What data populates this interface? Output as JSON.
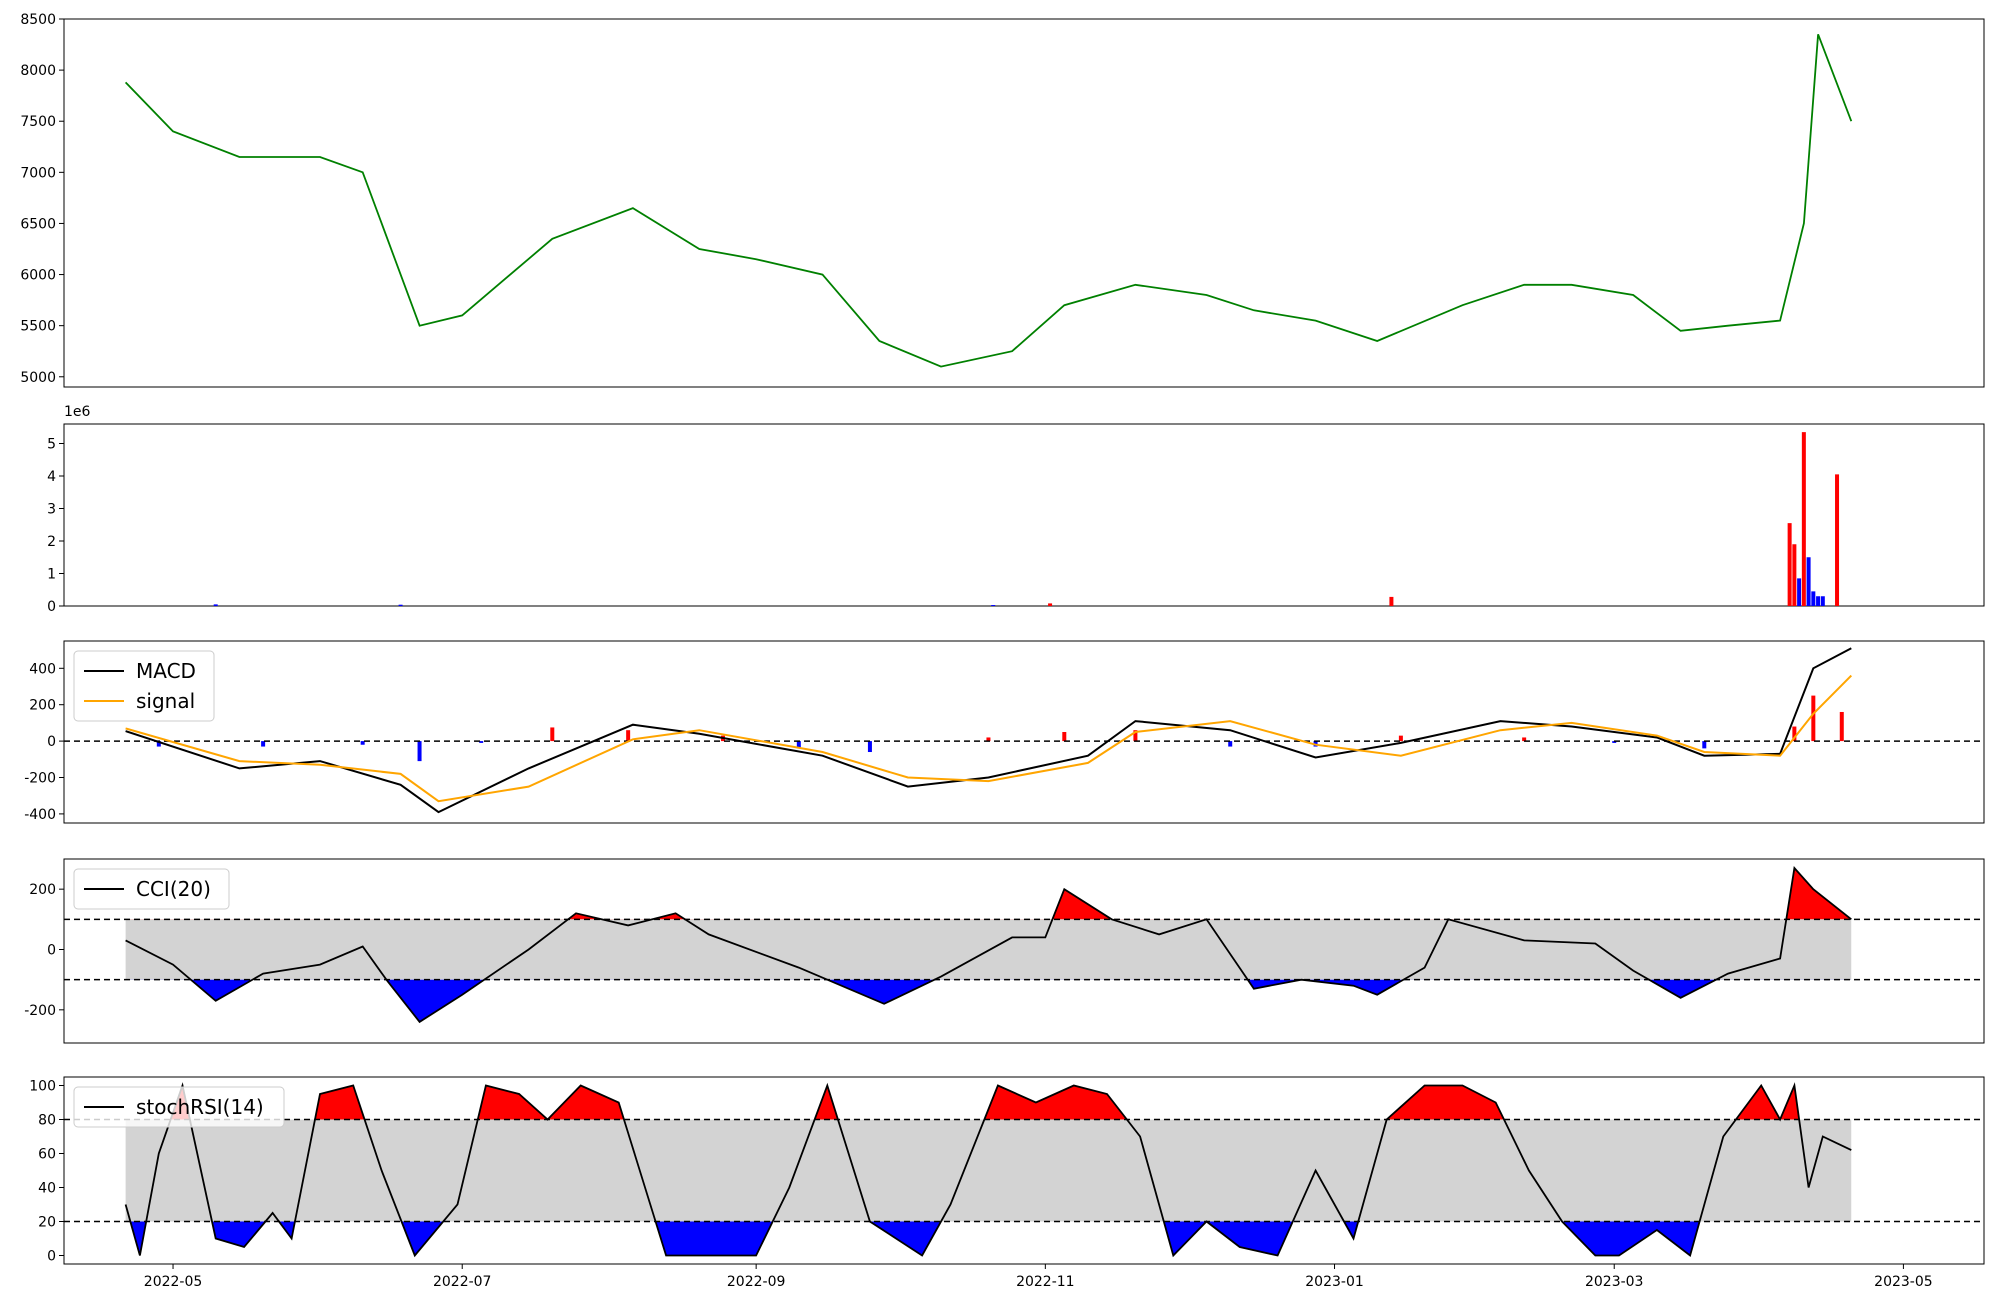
{
  "colors": {
    "price": "#008000",
    "volume_up": "#ff0000",
    "volume_down": "#0000ff",
    "macd": "#000000",
    "signal": "#ffa500",
    "band_fill": "#d3d3d3",
    "high_fill": "#ff0000",
    "low_fill": "#0000ff"
  },
  "x_axis": {
    "ticks": [
      "2022-05",
      "2022-07",
      "2022-09",
      "2022-11",
      "2023-01",
      "2023-03",
      "2023-05"
    ]
  },
  "chart_data": [
    {
      "type": "line",
      "name": "price",
      "ylim": [
        4900,
        8500
      ],
      "yticks": [
        "5000",
        "5500",
        "6000",
        "6500",
        "7000",
        "7500",
        "8000",
        "8500"
      ],
      "x": [
        "2022-04-21",
        "2022-05-01",
        "2022-05-15",
        "2022-06-01",
        "2022-06-10",
        "2022-06-22",
        "2022-07-01",
        "2022-07-20",
        "2022-08-06",
        "2022-08-20",
        "2022-09-01",
        "2022-09-15",
        "2022-09-27",
        "2022-10-10",
        "2022-10-25",
        "2022-11-05",
        "2022-11-20",
        "2022-12-05",
        "2022-12-15",
        "2022-12-28",
        "2023-01-10",
        "2023-01-28",
        "2023-02-10",
        "2023-02-20",
        "2023-03-05",
        "2023-03-15",
        "2023-03-25",
        "2023-04-05",
        "2023-04-10",
        "2023-04-13",
        "2023-04-20"
      ],
      "y": [
        7880,
        7400,
        7150,
        7150,
        7000,
        5500,
        5600,
        6350,
        6650,
        6250,
        6150,
        6000,
        5350,
        5100,
        5250,
        5700,
        5900,
        5800,
        5650,
        5550,
        5350,
        5700,
        5900,
        5900,
        5800,
        5450,
        5500,
        5550,
        6500,
        8350,
        7500
      ]
    },
    {
      "type": "bar",
      "name": "volume",
      "multiplier_label": "1e6",
      "ylim": [
        0,
        5.6
      ],
      "yticks": [
        "0",
        "1",
        "2",
        "3",
        "4",
        "5"
      ],
      "points": [
        {
          "x": "2022-05-10",
          "v": 0.05,
          "dir": "down"
        },
        {
          "x": "2022-06-18",
          "v": 0.04,
          "dir": "down"
        },
        {
          "x": "2022-10-21",
          "v": 0.03,
          "dir": "down"
        },
        {
          "x": "2022-11-02",
          "v": 0.08,
          "dir": "up"
        },
        {
          "x": "2023-01-13",
          "v": 0.28,
          "dir": "up"
        },
        {
          "x": "2023-04-07",
          "v": 2.55,
          "dir": "up"
        },
        {
          "x": "2023-04-08",
          "v": 1.9,
          "dir": "up"
        },
        {
          "x": "2023-04-09",
          "v": 0.85,
          "dir": "down"
        },
        {
          "x": "2023-04-10",
          "v": 5.35,
          "dir": "up"
        },
        {
          "x": "2023-04-11",
          "v": 1.5,
          "dir": "down"
        },
        {
          "x": "2023-04-12",
          "v": 0.45,
          "dir": "down"
        },
        {
          "x": "2023-04-13",
          "v": 0.3,
          "dir": "down"
        },
        {
          "x": "2023-04-14",
          "v": 0.3,
          "dir": "down"
        },
        {
          "x": "2023-04-17",
          "v": 4.05,
          "dir": "up"
        }
      ]
    },
    {
      "type": "line",
      "name": "macd",
      "ylim": [
        -450,
        550
      ],
      "yticks": [
        "-400",
        "-200",
        "0",
        "200",
        "400"
      ],
      "legend": [
        "MACD",
        "signal"
      ],
      "series": [
        {
          "name": "MACD",
          "x": [
            "2022-04-21",
            "2022-05-15",
            "2022-06-01",
            "2022-06-18",
            "2022-06-26",
            "2022-07-15",
            "2022-08-06",
            "2022-08-20",
            "2022-09-15",
            "2022-10-03",
            "2022-10-20",
            "2022-11-10",
            "2022-11-20",
            "2022-12-10",
            "2022-12-28",
            "2023-01-15",
            "2023-02-05",
            "2023-02-20",
            "2023-03-10",
            "2023-03-20",
            "2023-04-05",
            "2023-04-12",
            "2023-04-20"
          ],
          "values": [
            55,
            -150,
            -110,
            -240,
            -390,
            -150,
            90,
            40,
            -80,
            -250,
            -200,
            -80,
            110,
            60,
            -90,
            -10,
            110,
            80,
            20,
            -80,
            -70,
            400,
            510
          ]
        },
        {
          "name": "signal",
          "x": [
            "2022-04-21",
            "2022-05-15",
            "2022-06-01",
            "2022-06-18",
            "2022-06-26",
            "2022-07-15",
            "2022-08-06",
            "2022-08-20",
            "2022-09-15",
            "2022-10-03",
            "2022-10-20",
            "2022-11-10",
            "2022-11-20",
            "2022-12-10",
            "2022-12-28",
            "2023-01-15",
            "2023-02-05",
            "2023-02-20",
            "2023-03-10",
            "2023-03-20",
            "2023-04-05",
            "2023-04-12",
            "2023-04-20"
          ],
          "values": [
            70,
            -110,
            -130,
            -180,
            -330,
            -250,
            10,
            60,
            -60,
            -200,
            -220,
            -120,
            50,
            110,
            -20,
            -80,
            60,
            100,
            30,
            -60,
            -80,
            150,
            360
          ]
        }
      ],
      "histogram": {
        "x": [
          "2022-04-28",
          "2022-05-20",
          "2022-06-10",
          "2022-06-22",
          "2022-07-05",
          "2022-07-20",
          "2022-08-05",
          "2022-08-25",
          "2022-09-10",
          "2022-09-25",
          "2022-10-20",
          "2022-11-05",
          "2022-11-20",
          "2022-12-10",
          "2022-12-28",
          "2023-01-15",
          "2023-02-10",
          "2023-03-01",
          "2023-03-20",
          "2023-04-08",
          "2023-04-12",
          "2023-04-18"
        ],
        "values": [
          -30,
          -30,
          -20,
          -110,
          -10,
          75,
          60,
          30,
          -40,
          -60,
          20,
          50,
          60,
          -30,
          -30,
          30,
          20,
          -10,
          -40,
          80,
          250,
          160
        ]
      }
    },
    {
      "type": "area",
      "name": "cci",
      "ylim": [
        -310,
        300
      ],
      "yticks": [
        "-200",
        "0",
        "200"
      ],
      "legend": [
        "CCI(20)"
      ],
      "thresholds": [
        100,
        -100
      ],
      "x": [
        "2022-04-21",
        "2022-05-01",
        "2022-05-10",
        "2022-05-20",
        "2022-06-01",
        "2022-06-10",
        "2022-06-15",
        "2022-06-22",
        "2022-07-01",
        "2022-07-15",
        "2022-07-25",
        "2022-08-05",
        "2022-08-15",
        "2022-08-22",
        "2022-09-10",
        "2022-09-28",
        "2022-10-10",
        "2022-10-25",
        "2022-11-01",
        "2022-11-05",
        "2022-11-15",
        "2022-11-25",
        "2022-12-05",
        "2022-12-15",
        "2022-12-25",
        "2023-01-05",
        "2023-01-10",
        "2023-01-20",
        "2023-01-25",
        "2023-02-10",
        "2023-02-25",
        "2023-03-05",
        "2023-03-15",
        "2023-03-25",
        "2023-04-05",
        "2023-04-08",
        "2023-04-12",
        "2023-04-20"
      ],
      "y": [
        30,
        -50,
        -170,
        -80,
        -50,
        10,
        -100,
        -240,
        -150,
        0,
        120,
        80,
        120,
        50,
        -60,
        -180,
        -90,
        40,
        40,
        200,
        100,
        50,
        100,
        -130,
        -100,
        -120,
        -150,
        -60,
        100,
        30,
        20,
        -70,
        -160,
        -80,
        -30,
        270,
        200,
        100
      ]
    },
    {
      "type": "area",
      "name": "stochrsi",
      "ylim": [
        -5,
        105
      ],
      "yticks": [
        "0",
        "20",
        "40",
        "60",
        "80",
        "100"
      ],
      "legend": [
        "stochRSI(14)"
      ],
      "thresholds": [
        80,
        20
      ],
      "x": [
        "2022-04-21",
        "2022-04-24",
        "2022-04-28",
        "2022-05-03",
        "2022-05-10",
        "2022-05-16",
        "2022-05-22",
        "2022-05-26",
        "2022-06-01",
        "2022-06-08",
        "2022-06-14",
        "2022-06-21",
        "2022-06-30",
        "2022-07-06",
        "2022-07-13",
        "2022-07-19",
        "2022-07-26",
        "2022-08-03",
        "2022-08-13",
        "2022-08-21",
        "2022-09-01",
        "2022-09-08",
        "2022-09-16",
        "2022-09-25",
        "2022-10-06",
        "2022-10-12",
        "2022-10-22",
        "2022-10-30",
        "2022-11-07",
        "2022-11-14",
        "2022-11-21",
        "2022-11-28",
        "2022-12-05",
        "2022-12-12",
        "2022-12-20",
        "2022-12-28",
        "2023-01-05",
        "2023-01-12",
        "2023-01-20",
        "2023-01-28",
        "2023-02-04",
        "2023-02-11",
        "2023-02-18",
        "2023-02-25",
        "2023-03-02",
        "2023-03-10",
        "2023-03-17",
        "2023-03-24",
        "2023-04-01",
        "2023-04-05",
        "2023-04-08",
        "2023-04-11",
        "2023-04-14",
        "2023-04-20"
      ],
      "y": [
        30,
        0,
        60,
        100,
        10,
        5,
        25,
        10,
        95,
        100,
        50,
        0,
        30,
        100,
        95,
        80,
        100,
        90,
        0,
        0,
        0,
        40,
        100,
        20,
        0,
        30,
        100,
        90,
        100,
        95,
        70,
        0,
        20,
        5,
        0,
        50,
        10,
        80,
        100,
        100,
        90,
        50,
        20,
        0,
        0,
        15,
        0,
        70,
        100,
        80,
        100,
        40,
        70,
        62
      ]
    }
  ]
}
